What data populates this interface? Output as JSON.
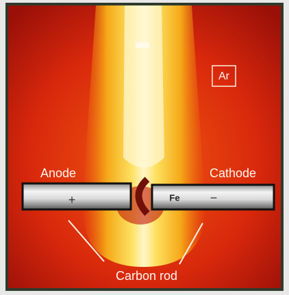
{
  "labels": {
    "ar": "Ar",
    "anode": "Anode",
    "cathode": "Cathode",
    "plus": "+",
    "fe": "Fe",
    "minus": "−",
    "carbon_rod": "Carbon rod"
  }
}
